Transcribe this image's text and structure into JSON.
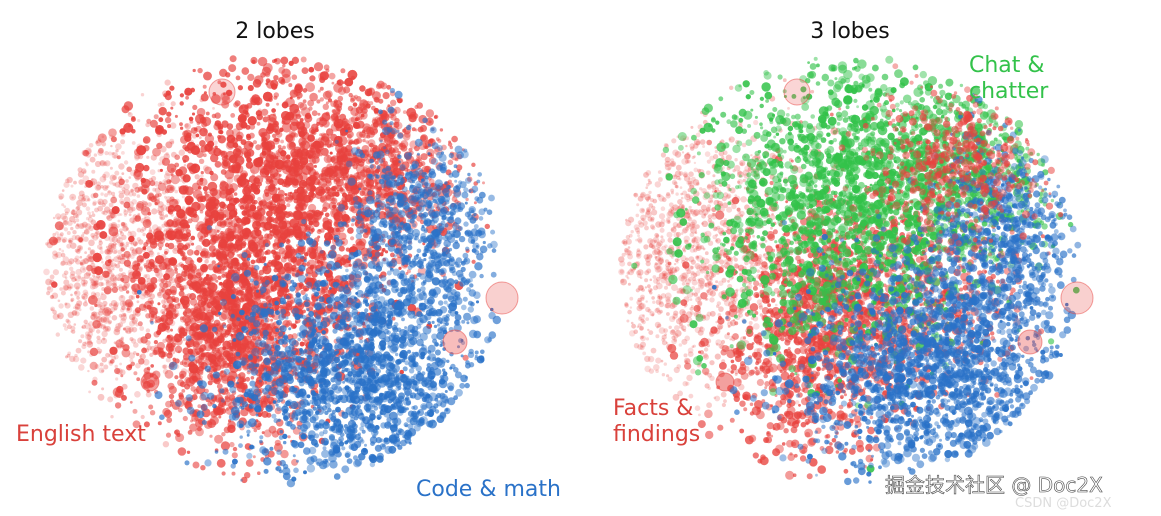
{
  "chart_data": [
    {
      "type": "scatter",
      "title": "2 lobes",
      "xlabel": "",
      "ylabel": "",
      "grid": false,
      "series": [
        {
          "name": "English text",
          "color": "#e8423e",
          "region": "left-center"
        },
        {
          "name": "Code & math",
          "color": "#2a72c8",
          "region": "lower-right"
        }
      ]
    },
    {
      "type": "scatter",
      "title": "3 lobes",
      "xlabel": "",
      "ylabel": "",
      "grid": false,
      "series": [
        {
          "name": "Facts & findings",
          "color": "#e8423e",
          "region": "left-bottom"
        },
        {
          "name": "Chat & chatter",
          "color": "#33c24a",
          "region": "top-center"
        },
        {
          "name": "Code & math",
          "color": "#2a72c8",
          "region": "lower-right",
          "label_shown": false
        }
      ]
    }
  ],
  "labels": {
    "left_red_label": "English text",
    "left_blue_label": "Code & math",
    "right_red_label_line1": "Facts &",
    "right_red_label_line2": "findings",
    "right_green_label_line1": "Chat &",
    "right_green_label_line2": "chatter"
  },
  "watermark": {
    "text": "掘金技术社区 @ Doc2X",
    "subtext": "CSDN @Doc2X"
  },
  "colors": {
    "red": "#e8423e",
    "blue": "#2a72c8",
    "green": "#33c24a",
    "red_label": "#d9413b",
    "blue_label": "#2a72c8",
    "green_label": "#33c24a"
  }
}
